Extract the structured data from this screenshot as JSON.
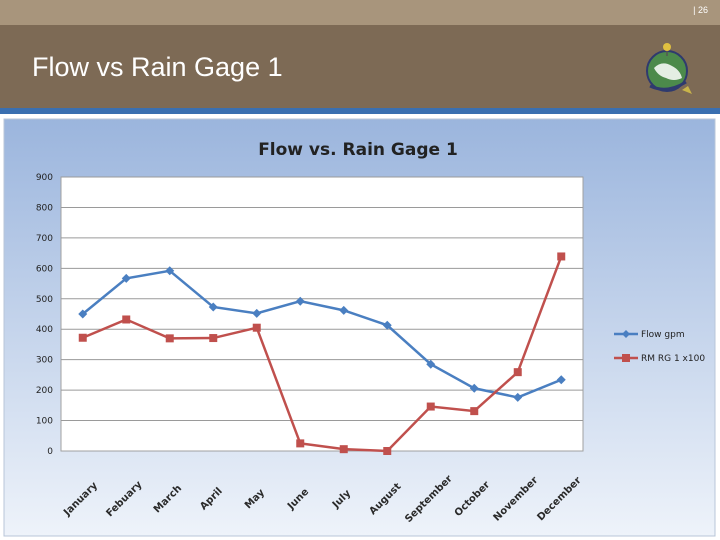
{
  "slide": {
    "page_number": "| 26",
    "title": "Flow vs Rain Gage 1"
  },
  "colors": {
    "header": "#7d6a55",
    "top_band": "#a8957c",
    "accent_line": "#3a6fb0",
    "flow_series": "#4a7fc1",
    "rain_series": "#c0504d"
  },
  "chart_data": {
    "type": "line",
    "title": "Flow  vs.  Rain Gage 1",
    "categories": [
      "January",
      "Febuary",
      "March",
      "April",
      "May",
      "June",
      "July",
      "August",
      "September",
      "October",
      "November",
      "December"
    ],
    "series": [
      {
        "name": "Flow gpm",
        "values": [
          450,
          567,
          592,
          473,
          452,
          492,
          462,
          413,
          285,
          206,
          176,
          234
        ]
      },
      {
        "name": "RM RG 1 x100",
        "values": [
          372,
          432,
          370,
          371,
          405,
          25,
          6,
          0,
          146,
          131,
          259,
          639
        ]
      }
    ],
    "ylim": [
      0,
      900
    ],
    "yticks": [
      "0",
      "100",
      "200",
      "300",
      "400",
      "500",
      "600",
      "700",
      "800",
      "900"
    ],
    "grid": true,
    "legend": "right"
  }
}
